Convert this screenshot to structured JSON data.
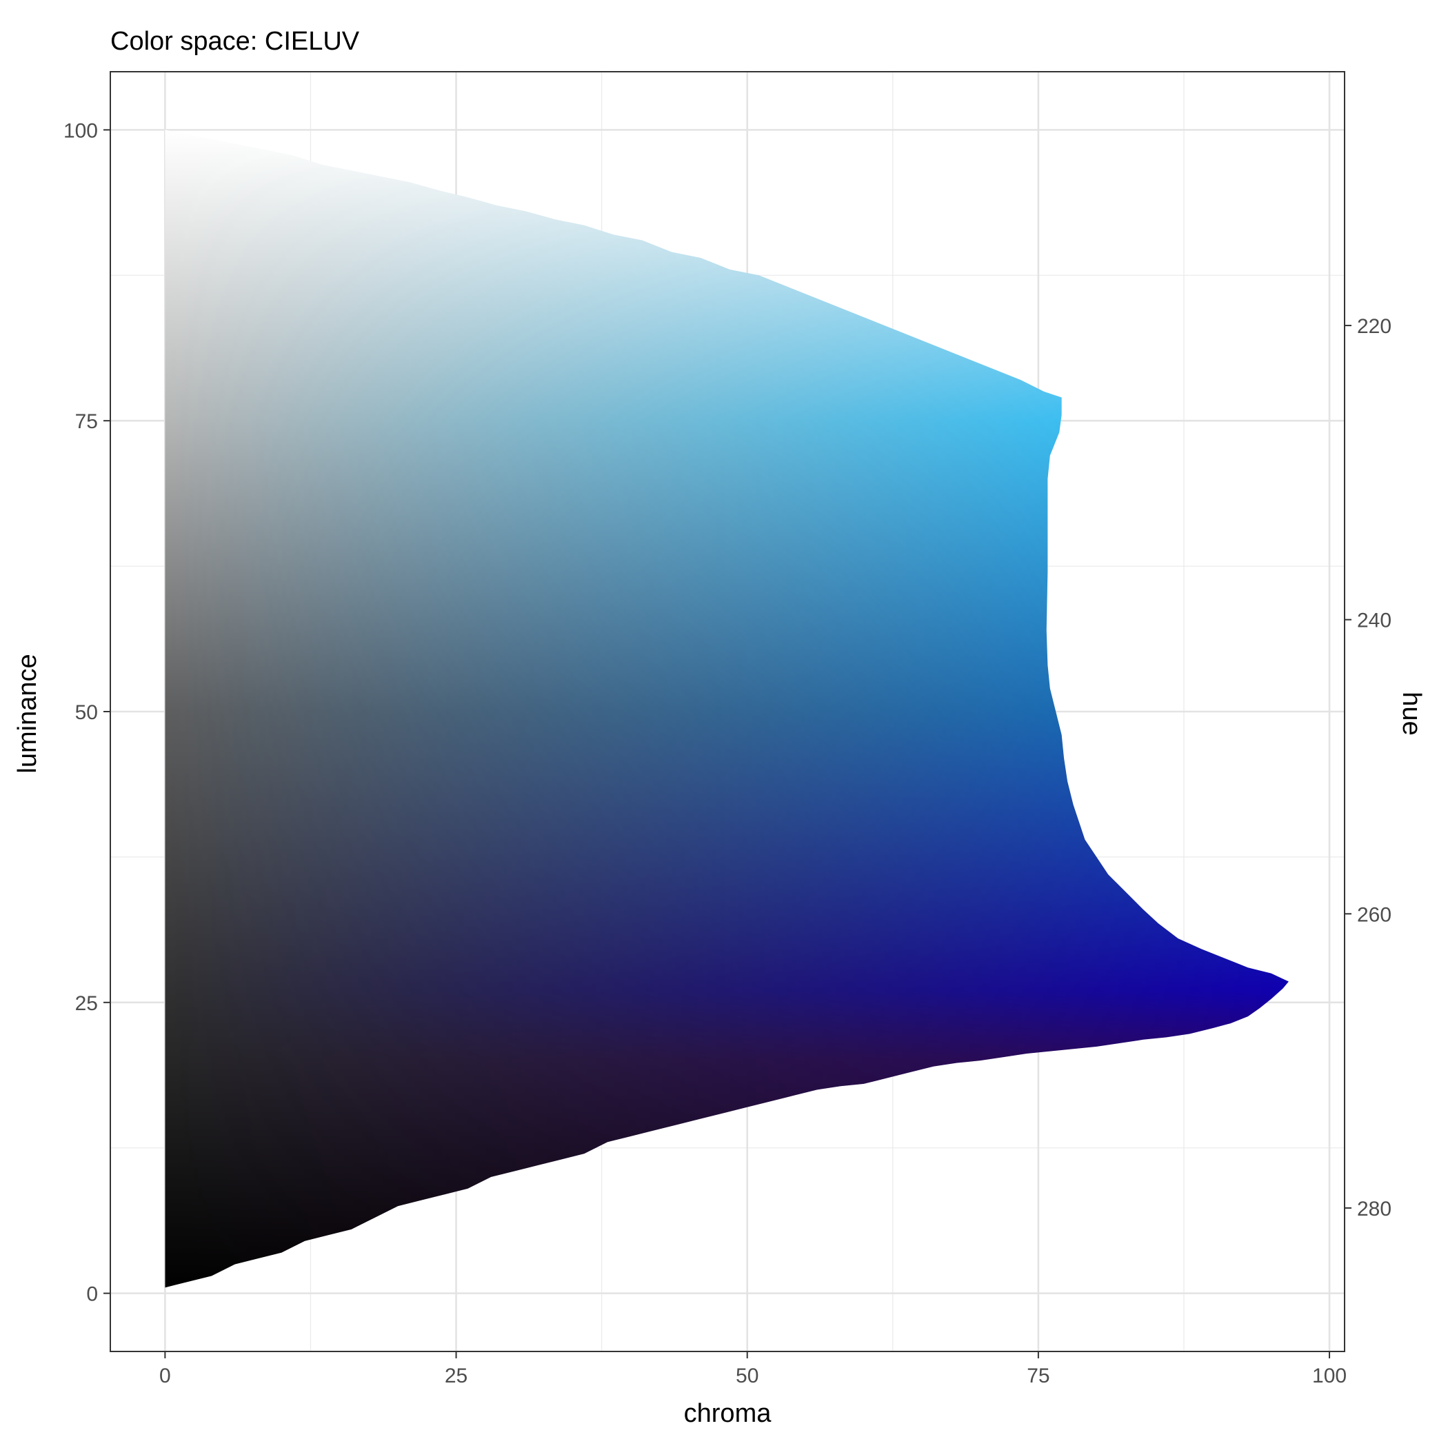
{
  "chart_data": {
    "type": "heatmap",
    "title": "Color space: CIELUV",
    "xlabel": "chroma",
    "ylabel": "luminance",
    "y2label": "hue",
    "xlim": [
      -4.7,
      101.3
    ],
    "ylim": [
      -5.0,
      105.0
    ],
    "x_ticks": [
      "0",
      "25",
      "50",
      "75",
      "100"
    ],
    "y_ticks": [
      "0",
      "25",
      "50",
      "75",
      "100"
    ],
    "y2_ticks": [
      "220",
      "240",
      "260",
      "280"
    ],
    "y2_scale": {
      "at_luminance_100": 206.7,
      "at_luminance_0": 285.8
    },
    "grid": true,
    "boundary": [
      [
        0,
        0.5
      ],
      [
        2,
        1
      ],
      [
        4,
        1.5
      ],
      [
        6,
        2.5
      ],
      [
        8,
        3
      ],
      [
        10,
        3.5
      ],
      [
        12,
        4.5
      ],
      [
        14,
        5
      ],
      [
        16,
        5.5
      ],
      [
        18,
        6.5
      ],
      [
        20,
        7.5
      ],
      [
        22,
        8
      ],
      [
        24,
        8.5
      ],
      [
        26,
        9
      ],
      [
        28,
        10
      ],
      [
        30,
        10.5
      ],
      [
        32,
        11
      ],
      [
        34,
        11.5
      ],
      [
        36,
        12
      ],
      [
        38,
        13
      ],
      [
        40,
        13.5
      ],
      [
        42,
        14
      ],
      [
        44,
        14.5
      ],
      [
        46,
        15
      ],
      [
        48,
        15.5
      ],
      [
        50,
        16
      ],
      [
        52,
        16.5
      ],
      [
        54,
        17
      ],
      [
        56,
        17.5
      ],
      [
        58,
        17.8
      ],
      [
        60,
        18
      ],
      [
        62,
        18.5
      ],
      [
        64,
        19
      ],
      [
        66,
        19.5
      ],
      [
        68,
        19.8
      ],
      [
        70,
        20
      ],
      [
        72,
        20.3
      ],
      [
        74,
        20.6
      ],
      [
        76,
        20.8
      ],
      [
        78,
        21
      ],
      [
        80,
        21.2
      ],
      [
        82,
        21.5
      ],
      [
        84,
        21.8
      ],
      [
        86,
        22
      ],
      [
        88,
        22.3
      ],
      [
        90,
        22.8
      ],
      [
        91.5,
        23.2
      ],
      [
        93,
        23.8
      ],
      [
        94,
        24.5
      ],
      [
        95,
        25.3
      ],
      [
        96,
        26.2
      ],
      [
        96.5,
        26.8
      ],
      [
        95,
        27.5
      ],
      [
        93,
        28
      ],
      [
        91,
        28.8
      ],
      [
        89,
        29.6
      ],
      [
        87,
        30.5
      ],
      [
        85.3,
        31.8
      ],
      [
        84,
        33
      ],
      [
        82.5,
        34.5
      ],
      [
        81,
        36
      ],
      [
        80,
        37.5
      ],
      [
        79,
        39
      ],
      [
        78.5,
        40.5
      ],
      [
        78,
        42
      ],
      [
        77.5,
        44
      ],
      [
        77.2,
        46
      ],
      [
        77,
        48
      ],
      [
        76.5,
        50
      ],
      [
        76,
        52
      ],
      [
        75.8,
        54
      ],
      [
        75.7,
        57
      ],
      [
        75.8,
        62
      ],
      [
        75.8,
        66
      ],
      [
        75.8,
        70
      ],
      [
        76,
        72
      ],
      [
        76.8,
        74
      ],
      [
        77,
        75.5
      ],
      [
        77,
        77
      ],
      [
        75.5,
        77.5
      ],
      [
        73.5,
        78.5
      ],
      [
        71,
        79.5
      ],
      [
        68.5,
        80.5
      ],
      [
        66,
        81.5
      ],
      [
        63.5,
        82.5
      ],
      [
        61,
        83.5
      ],
      [
        58.5,
        84.5
      ],
      [
        56,
        85.5
      ],
      [
        53.5,
        86.5
      ],
      [
        51,
        87.5
      ],
      [
        48.5,
        88
      ],
      [
        46,
        89
      ],
      [
        43.5,
        89.5
      ],
      [
        41,
        90.5
      ],
      [
        38.5,
        91
      ],
      [
        36,
        91.8
      ],
      [
        33.5,
        92.3
      ],
      [
        31,
        93
      ],
      [
        28.5,
        93.5
      ],
      [
        26,
        94.2
      ],
      [
        23.5,
        94.8
      ],
      [
        21,
        95.5
      ],
      [
        18.5,
        96
      ],
      [
        16,
        96.5
      ],
      [
        13.5,
        97
      ],
      [
        11,
        97.8
      ],
      [
        8.5,
        98.3
      ],
      [
        6,
        98.8
      ],
      [
        3.5,
        99.3
      ],
      [
        1,
        99.8
      ],
      [
        0,
        100
      ]
    ],
    "color_stops": {
      "luminance": [
        0,
        20,
        26,
        50,
        75,
        100
      ],
      "full_chroma_color": [
        "#1a0010",
        "#2a0068",
        "#1000b0",
        "#0a6ec8",
        "#1ec0ff",
        "#ffffff"
      ],
      "gray_color": [
        "#000000",
        "#262626",
        "#303030",
        "#5e5e5e",
        "#b5b5b5",
        "#ffffff"
      ]
    }
  }
}
